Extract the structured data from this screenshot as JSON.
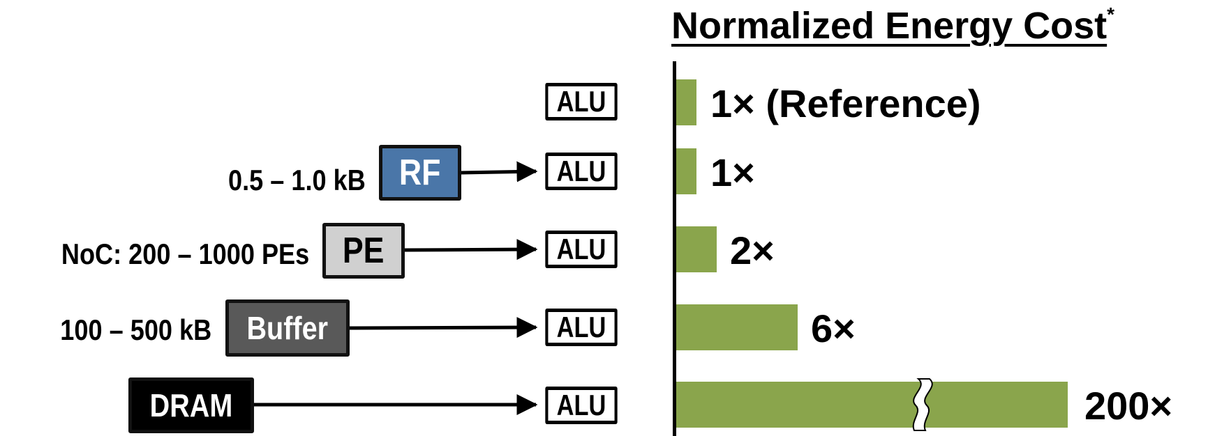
{
  "title": {
    "text": "Normalized Energy Cost",
    "marker": "*"
  },
  "colors": {
    "bar": "#8aa54c",
    "rf_box": "#4a76a8",
    "pe_box": "#d0d0d0",
    "buffer_box": "#595959",
    "dram_box": "#000000"
  },
  "rows": [
    {
      "source_label": "",
      "source_box": "",
      "alu_label": "ALU",
      "cost_label": "1× (Reference)"
    },
    {
      "source_label": "0.5 – 1.0 kB",
      "source_box": "RF",
      "alu_label": "ALU",
      "cost_label": "1×"
    },
    {
      "source_label": "NoC: 200 – 1000 PEs",
      "source_box": "PE",
      "alu_label": "ALU",
      "cost_label": "2×"
    },
    {
      "source_label": "100 – 500 kB",
      "source_box": "Buffer",
      "alu_label": "ALU",
      "cost_label": "6×"
    },
    {
      "source_label": "",
      "source_box": "DRAM",
      "alu_label": "ALU",
      "cost_label": "200×"
    }
  ],
  "chart_data": {
    "type": "bar",
    "orientation": "horizontal",
    "categories": [
      "ALU",
      "RF → ALU",
      "PE → ALU",
      "Buffer → ALU",
      "DRAM → ALU"
    ],
    "values": [
      1,
      1,
      2,
      6,
      200
    ],
    "axis_break_on": "DRAM → ALU",
    "title": "Normalized Energy Cost*"
  }
}
